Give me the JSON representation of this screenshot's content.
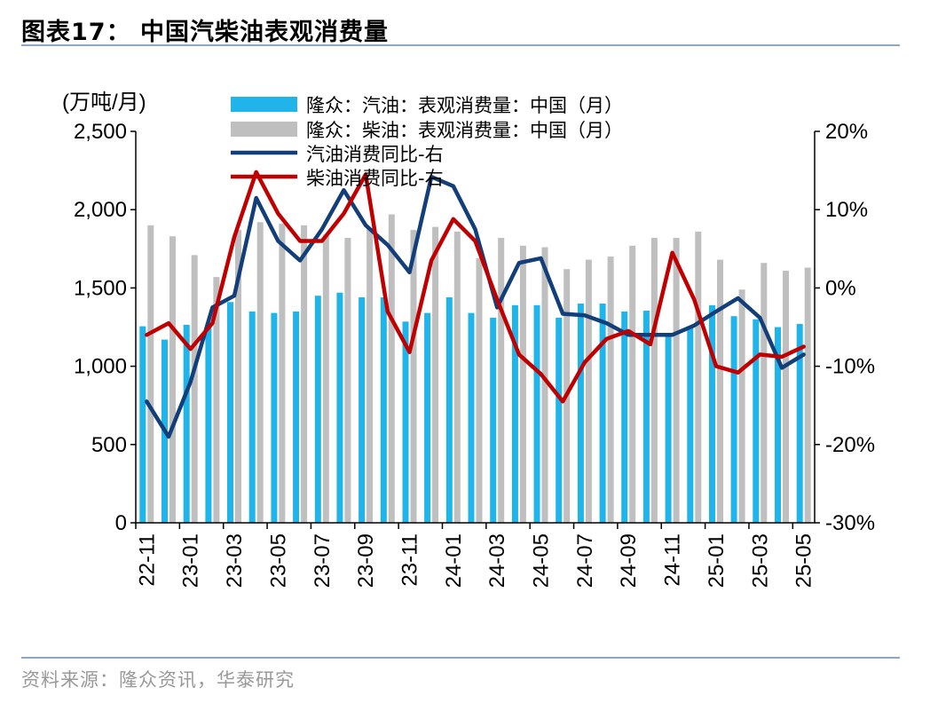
{
  "header": {
    "title": "图表17：  中国汽柴油表观消费量"
  },
  "footer": {
    "source": "资料来源：隆众资讯，华泰研究"
  },
  "chart_data": {
    "type": "bar",
    "ylabel_left": "(万吨/月)",
    "ylim_left": [
      0,
      2500
    ],
    "yticks_left": [
      "0",
      "500",
      "1,000",
      "1,500",
      "2,000",
      "2,500"
    ],
    "ylim_right": [
      -30,
      20
    ],
    "yticks_right": [
      "-30%",
      "-20%",
      "-10%",
      "0%",
      "10%",
      "20%"
    ],
    "xtick_labels": [
      "22-11",
      "23-01",
      "23-03",
      "23-05",
      "23-07",
      "23-09",
      "23-11",
      "24-01",
      "24-03",
      "24-05",
      "24-07",
      "24-09",
      "24-11",
      "25-01",
      "25-03",
      "25-05"
    ],
    "categories": [
      "22-11",
      "22-12",
      "23-01",
      "23-02",
      "23-03",
      "23-04",
      "23-05",
      "23-06",
      "23-07",
      "23-08",
      "23-09",
      "23-10",
      "23-11",
      "23-12",
      "24-01",
      "24-02",
      "24-03",
      "24-04",
      "24-05",
      "24-06",
      "24-07",
      "24-08",
      "24-09",
      "24-10",
      "24-11",
      "24-12",
      "25-01",
      "25-02",
      "25-03",
      "25-04",
      "25-05"
    ],
    "legend_position": "top",
    "series": [
      {
        "name": "隆众：汽油：表观消费量：中国（月）",
        "kind": "bar",
        "axis": "left",
        "color": "#1fb4ea",
        "values": [
          1255,
          1170,
          1265,
          1270,
          1410,
          1350,
          1340,
          1350,
          1450,
          1470,
          1440,
          1440,
          1285,
          1340,
          1440,
          1340,
          1310,
          1390,
          1390,
          1310,
          1400,
          1400,
          1350,
          1355,
          1200,
          1250,
          1390,
          1320,
          1300,
          1250,
          1270
        ]
      },
      {
        "name": "隆众：柴油：表观消费量：中国（月）",
        "kind": "bar",
        "axis": "left",
        "color": "#bfbfbf",
        "values": [
          1900,
          1830,
          1710,
          1570,
          1870,
          1920,
          1910,
          1900,
          1840,
          1820,
          1880,
          1970,
          1870,
          1890,
          1860,
          1690,
          1820,
          1770,
          1760,
          1620,
          1680,
          1700,
          1770,
          1820,
          1820,
          1860,
          1680,
          1490,
          1660,
          1610,
          1630
        ]
      },
      {
        "name": "汽油消费同比-右",
        "kind": "line",
        "axis": "right",
        "color": "#123e7a",
        "values": [
          -14.5,
          -19,
          -12,
          -2.5,
          -1,
          11.5,
          6,
          3.5,
          7.5,
          12.5,
          8,
          5.5,
          2,
          14.2,
          13,
          7.5,
          -2.5,
          3.2,
          3.8,
          -3.3,
          -3.5,
          -4.5,
          -6,
          -6,
          -6,
          -4.8,
          -3,
          -1.3,
          -3.8,
          -10.2,
          -8.5
        ]
      },
      {
        "name": "柴油消费同比-右",
        "kind": "line",
        "axis": "right",
        "color": "#c00000",
        "values": [
          -6,
          -4.5,
          -7.8,
          -4.5,
          6.5,
          14.8,
          9.5,
          6,
          6,
          9.5,
          14.5,
          -3,
          -8.2,
          3.5,
          8.8,
          6,
          -1.5,
          -8.5,
          -11,
          -14.5,
          -9.5,
          -6.5,
          -5.5,
          -7.2,
          4.5,
          -1.5,
          -10,
          -10.8,
          -8.5,
          -8.8,
          -7.5
        ]
      }
    ]
  }
}
